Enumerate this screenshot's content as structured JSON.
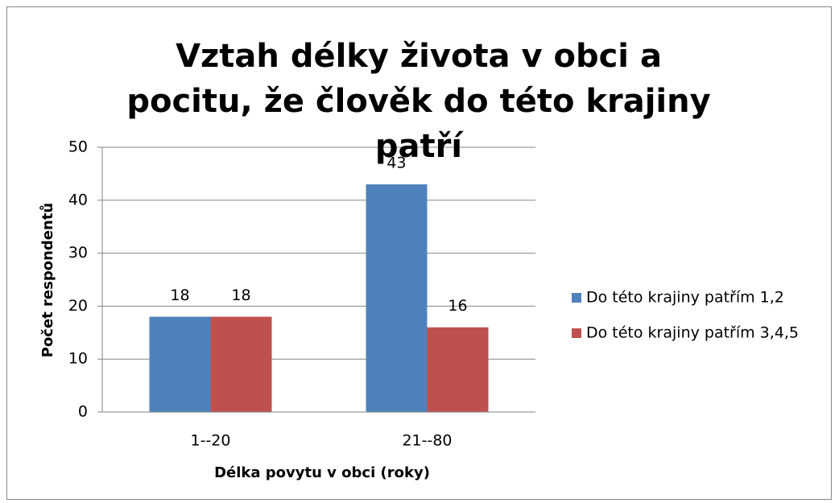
{
  "chart_data": {
    "type": "bar",
    "title": "Vztah délky života v obci a pocitu, že člověk do této krajiny patří",
    "x_label": "Délka povytu v obci (roky)",
    "y_label": "Počet respondentů",
    "categories": [
      "1--20",
      "21--80"
    ],
    "series": [
      {
        "name": "Do této krajiny patřím 1,2",
        "color": "#4f81bd",
        "values": [
          18,
          43
        ]
      },
      {
        "name": "Do této krajiny patřím 3,4,5",
        "color": "#c0504d",
        "values": [
          18,
          16
        ]
      }
    ],
    "ylim": [
      0,
      50
    ],
    "yticks": [
      0,
      10,
      20,
      30,
      40,
      50
    ],
    "grid": true,
    "legend": "right"
  }
}
